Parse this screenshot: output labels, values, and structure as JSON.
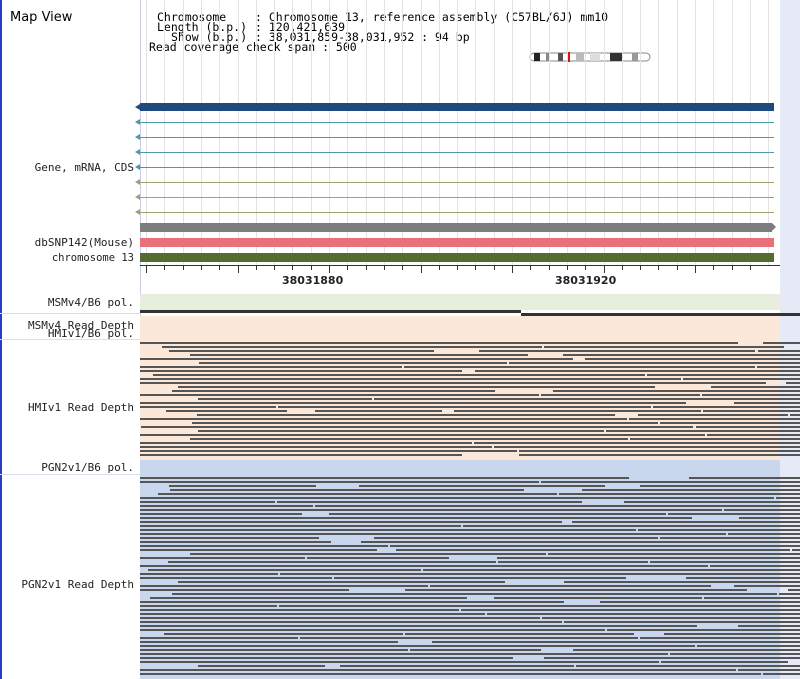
{
  "title": "Map View",
  "header": {
    "chromosome_key": "Chromosome",
    "chromosome_value": ": Chromosome 13, reference assembly (C57BL/6J) mm10",
    "length_key": "Length (b.p.)",
    "length_value": ": 120,421,639",
    "show_key": "Show (b.p.)",
    "show_value": ": 38,031,859-38,031,952 : 94 bp",
    "coverage_line": "Read coverage check span : 500"
  },
  "tracks": {
    "gene_label": "Gene, mRNA, CDS",
    "dbsnp_label": "dbSNP142(Mouse)",
    "chromosome_label": "chromosome 13",
    "msm_pol_label": "MSMv4/B6 pol.",
    "msm_depth_label": "MSMv4 Read Depth",
    "hmi_pol_label": "HMIv1/B6 pol.",
    "hmi_depth_label": "HMIv1 Read Depth",
    "pgn_pol_label": "PGN2v1/B6 pol.",
    "pgn_depth_label": "PGN2v1 Read Depth"
  },
  "axis": {
    "coord_left": "38031880",
    "coord_right": "38031920"
  },
  "colors": {
    "gene_main": "#1f4a80",
    "transcript_teal": "#4a9aa8",
    "transcript_olive": "#a0a070",
    "dbsnp": "#e8707a",
    "chromosome": "#556b2f",
    "gray_track": "#7d7d7d",
    "msm_bg": "#e7eedd",
    "hmi_bg": "#fbe8d8",
    "pgn_bg": "#c9d7ee",
    "read": "#555555"
  }
}
